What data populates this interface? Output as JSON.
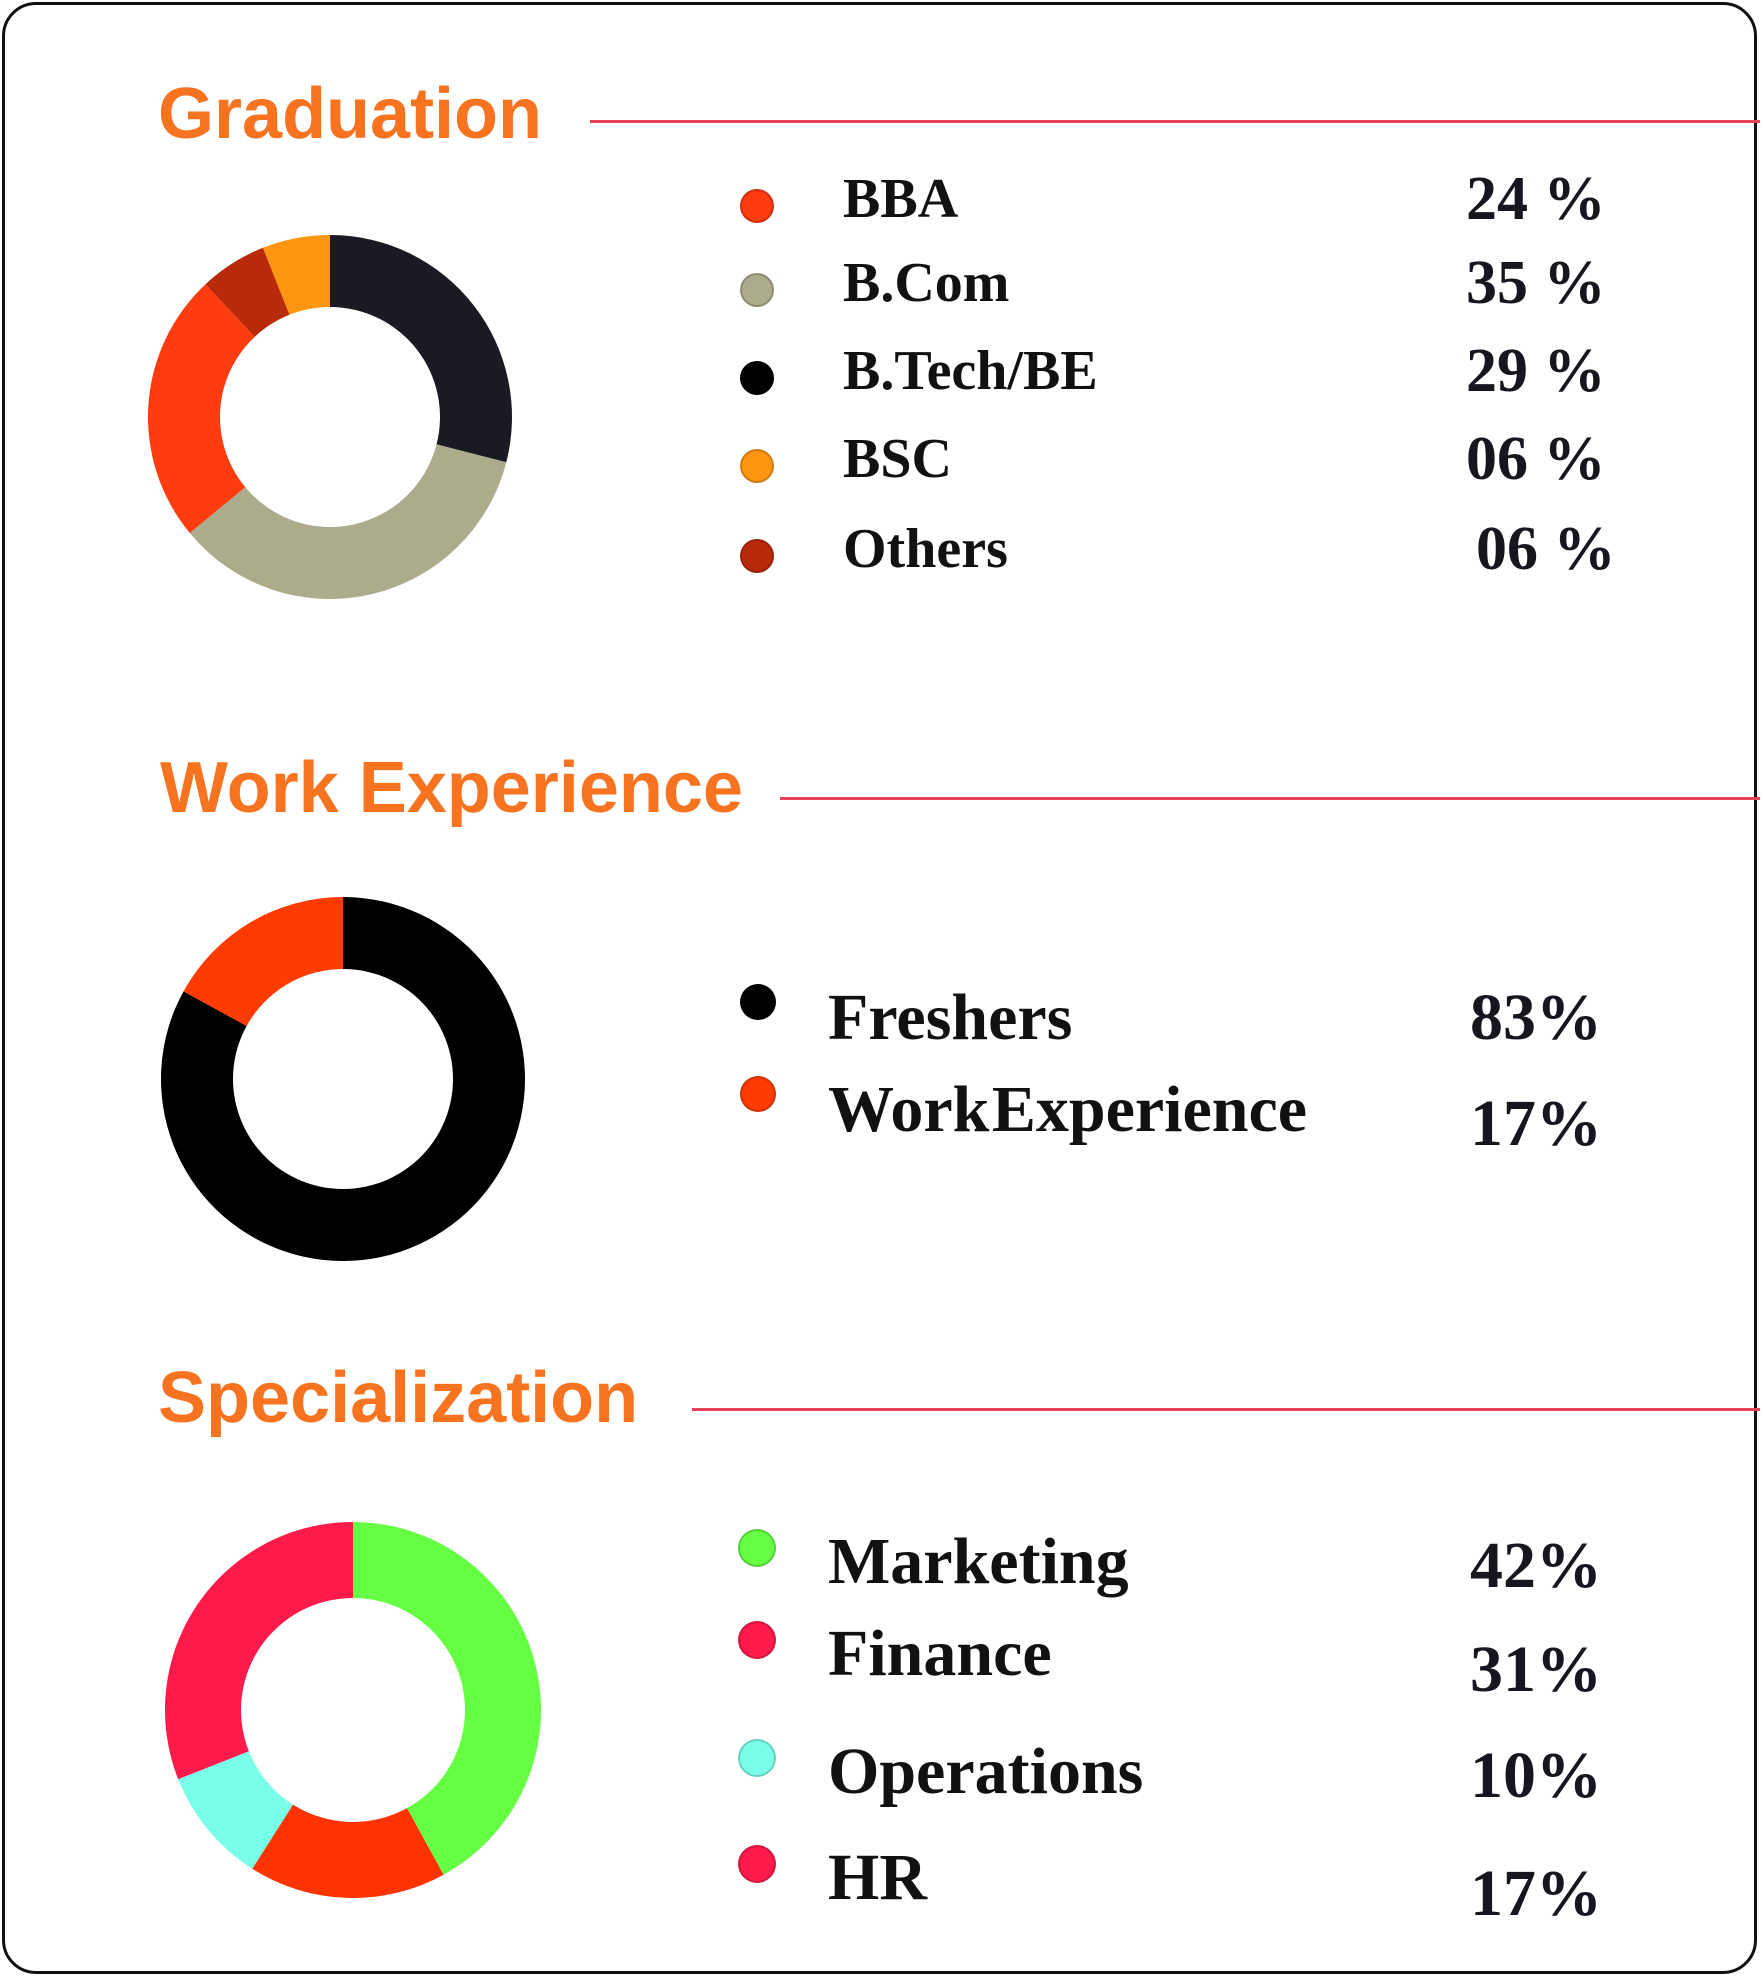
{
  "chart_data": [
    {
      "type": "pie",
      "title": "Graduation",
      "donut": true,
      "categories": [
        "BBA",
        "B.Com",
        "B.Tech/BE",
        "BSC",
        "Others"
      ],
      "values": [
        24,
        35,
        29,
        6,
        6
      ],
      "value_labels": [
        "24 %",
        "35 %",
        "29 %",
        "06 %",
        "06 %"
      ],
      "colors": [
        "#ff3b10",
        "#acab8c",
        "#000000",
        "#fe9612",
        "#b92a0b"
      ],
      "slices": [
        {
          "category": "B.Tech/BE",
          "value": 29,
          "color": "#1a1a22"
        },
        {
          "category": "B.Com",
          "value": 35,
          "color": "#acab8c"
        },
        {
          "category": "BBA",
          "value": 24,
          "color": "#ff3b10"
        },
        {
          "category": "Others",
          "value": 6,
          "color": "#b92a0b"
        },
        {
          "category": "BSC",
          "value": 6,
          "color": "#fe9612"
        }
      ]
    },
    {
      "type": "pie",
      "title": "Work Experience",
      "donut": true,
      "categories": [
        "Freshers",
        "Work Experience"
      ],
      "values": [
        83,
        17
      ],
      "value_labels": [
        "83%",
        "17%"
      ],
      "colors": [
        "#000000",
        "#ff3b00"
      ],
      "slices": [
        {
          "category": "Freshers",
          "value": 83,
          "color": "#000000"
        },
        {
          "category": "Work Experience",
          "value": 17,
          "color": "#ff3b00"
        }
      ]
    },
    {
      "type": "pie",
      "title": "Specialization",
      "donut": true,
      "categories": [
        "Marketing",
        "Finance",
        "Operations",
        "HR"
      ],
      "values": [
        42,
        31,
        10,
        17
      ],
      "value_labels": [
        "42%",
        "31%",
        "10%",
        "17%"
      ],
      "colors": [
        "#66ff44",
        "#ff1a4c",
        "#7affe8",
        "#ff1a4c"
      ],
      "slices": [
        {
          "category": "Marketing",
          "value": 42,
          "color": "#66ff44"
        },
        {
          "category": "HR",
          "value": 17,
          "color": "#ff3300"
        },
        {
          "category": "Operations",
          "value": 10,
          "color": "#7affe8"
        },
        {
          "category": "Finance",
          "value": 31,
          "color": "#ff1a4c"
        }
      ]
    }
  ]
}
